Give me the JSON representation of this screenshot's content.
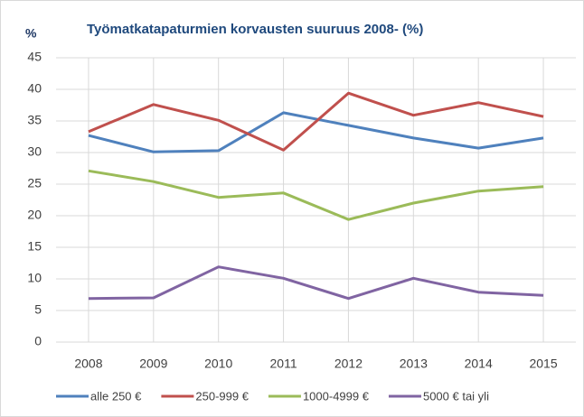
{
  "chart_data": {
    "type": "line",
    "title": "Työmatkatapaturmien korvausten suuruus 2008- (%)",
    "y_label": "%",
    "categories": [
      "2008",
      "2009",
      "2010",
      "2011",
      "2012",
      "2013",
      "2014",
      "2015"
    ],
    "series": [
      {
        "name": "alle 250 €",
        "color": "#4f81bd",
        "values": [
          32.7,
          30.1,
          30.3,
          36.3,
          34.3,
          32.3,
          30.7,
          32.3
        ]
      },
      {
        "name": "250-999 €",
        "color": "#c0504d",
        "values": [
          33.3,
          37.6,
          35.1,
          30.4,
          39.4,
          35.9,
          37.9,
          35.7
        ]
      },
      {
        "name": "1000-4999 €",
        "color": "#9bbb59",
        "values": [
          27.1,
          25.4,
          22.9,
          23.6,
          19.4,
          22.0,
          23.9,
          24.6
        ]
      },
      {
        "name": "5000 € tai yli",
        "color": "#8064a2",
        "values": [
          6.9,
          7.0,
          11.9,
          10.1,
          6.9,
          10.1,
          7.9,
          7.4
        ]
      }
    ],
    "ylim": [
      0,
      45
    ],
    "yticks": [
      0,
      5,
      10,
      15,
      20,
      25,
      30,
      35,
      40,
      45
    ],
    "grid": true,
    "legend": "bottom"
  }
}
